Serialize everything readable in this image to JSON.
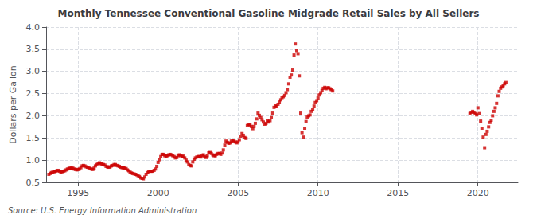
{
  "chart_data": {
    "type": "scatter",
    "title": "Monthly Tennessee Conventional Gasoline Midgrade Retail Sales by All Sellers",
    "ylabel": "Dollars per Gallon",
    "annotation": "Source: U.S. Energy Information Administration",
    "color": "#cc0000",
    "marker": "square",
    "grid": true,
    "xlim": [
      1993.0,
      2022.5
    ],
    "ylim": [
      0.5,
      4.0
    ],
    "xticks": [
      1995,
      2000,
      2005,
      2010,
      2015,
      2020
    ],
    "yticks": [
      0.5,
      {
        "value": 1.0,
        "label": "1.0"
      },
      1.5,
      {
        "value": 2.0,
        "label": "2.0"
      },
      2.5,
      {
        "value": 3.0,
        "label": "3.0"
      },
      3.5,
      {
        "value": 4.0,
        "label": "4.0"
      }
    ],
    "x": [
      1993.17,
      1993.25,
      1993.33,
      1993.42,
      1993.5,
      1993.58,
      1993.67,
      1993.75,
      1993.83,
      1993.92,
      1994.0,
      1994.08,
      1994.17,
      1994.25,
      1994.33,
      1994.42,
      1994.5,
      1994.58,
      1994.67,
      1994.75,
      1994.83,
      1994.92,
      1995.0,
      1995.08,
      1995.17,
      1995.25,
      1995.33,
      1995.42,
      1995.5,
      1995.58,
      1995.67,
      1995.75,
      1995.83,
      1995.92,
      1996.0,
      1996.08,
      1996.17,
      1996.25,
      1996.33,
      1996.42,
      1996.5,
      1996.58,
      1996.67,
      1996.75,
      1996.83,
      1996.92,
      1997.0,
      1997.08,
      1997.17,
      1997.25,
      1997.33,
      1997.42,
      1997.5,
      1997.58,
      1997.67,
      1997.75,
      1997.83,
      1997.92,
      1998.0,
      1998.08,
      1998.17,
      1998.25,
      1998.33,
      1998.42,
      1998.5,
      1998.58,
      1998.67,
      1998.75,
      1998.83,
      1998.92,
      1999.0,
      1999.08,
      1999.17,
      1999.25,
      1999.33,
      1999.42,
      1999.5,
      1999.58,
      1999.67,
      1999.75,
      1999.83,
      1999.92,
      2000.0,
      2000.08,
      2000.17,
      2000.25,
      2000.33,
      2000.42,
      2000.5,
      2000.58,
      2000.67,
      2000.75,
      2000.83,
      2000.92,
      2001.0,
      2001.08,
      2001.17,
      2001.25,
      2001.33,
      2001.42,
      2001.5,
      2001.58,
      2001.67,
      2001.75,
      2001.83,
      2001.92,
      2002.0,
      2002.08,
      2002.17,
      2002.25,
      2002.33,
      2002.42,
      2002.5,
      2002.58,
      2002.67,
      2002.75,
      2002.83,
      2002.92,
      2003.0,
      2003.08,
      2003.17,
      2003.25,
      2003.33,
      2003.42,
      2003.5,
      2003.58,
      2003.67,
      2003.75,
      2003.83,
      2003.92,
      2004.0,
      2004.08,
      2004.17,
      2004.25,
      2004.33,
      2004.42,
      2004.5,
      2004.58,
      2004.67,
      2004.75,
      2004.83,
      2004.92,
      2005.0,
      2005.08,
      2005.17,
      2005.25,
      2005.33,
      2005.42,
      2005.5,
      2005.58,
      2005.67,
      2005.75,
      2005.83,
      2005.92,
      2006.0,
      2006.08,
      2006.17,
      2006.25,
      2006.33,
      2006.42,
      2006.5,
      2006.58,
      2006.67,
      2006.75,
      2006.83,
      2006.92,
      2007.0,
      2007.08,
      2007.17,
      2007.25,
      2007.33,
      2007.42,
      2007.5,
      2007.58,
      2007.67,
      2007.75,
      2007.83,
      2007.92,
      2008.0,
      2008.08,
      2008.17,
      2008.25,
      2008.33,
      2008.42,
      2008.5,
      2008.58,
      2008.67,
      2008.75,
      2008.83,
      2008.92,
      2009.0,
      2009.08,
      2009.17,
      2009.25,
      2009.33,
      2009.42,
      2009.5,
      2009.58,
      2009.67,
      2009.75,
      2009.83,
      2009.92,
      2010.0,
      2010.08,
      2010.17,
      2010.25,
      2010.33,
      2010.42,
      2010.5,
      2010.58,
      2010.67,
      2010.75,
      2010.83,
      2010.92,
      2019.5,
      2019.58,
      2019.67,
      2019.75,
      2019.83,
      2019.92,
      2020.0,
      2020.08,
      2020.17,
      2020.25,
      2020.33,
      2020.42,
      2020.5,
      2020.58,
      2020.67,
      2020.75,
      2020.83,
      2020.92,
      2021.0,
      2021.08,
      2021.17,
      2021.25,
      2021.33,
      2021.42,
      2021.5,
      2021.58,
      2021.67,
      2021.75
    ],
    "values": [
      0.68,
      0.7,
      0.72,
      0.73,
      0.74,
      0.75,
      0.76,
      0.77,
      0.75,
      0.73,
      0.74,
      0.75,
      0.76,
      0.78,
      0.8,
      0.81,
      0.82,
      0.82,
      0.82,
      0.8,
      0.79,
      0.78,
      0.79,
      0.8,
      0.83,
      0.87,
      0.88,
      0.87,
      0.85,
      0.84,
      0.83,
      0.81,
      0.8,
      0.79,
      0.82,
      0.87,
      0.9,
      0.93,
      0.94,
      0.92,
      0.91,
      0.9,
      0.89,
      0.86,
      0.85,
      0.84,
      0.85,
      0.87,
      0.88,
      0.9,
      0.9,
      0.88,
      0.87,
      0.86,
      0.84,
      0.83,
      0.83,
      0.82,
      0.81,
      0.78,
      0.76,
      0.73,
      0.71,
      0.7,
      0.69,
      0.68,
      0.67,
      0.65,
      0.63,
      0.6,
      0.59,
      0.58,
      0.62,
      0.68,
      0.72,
      0.74,
      0.75,
      0.75,
      0.75,
      0.77,
      0.8,
      0.86,
      0.95,
      1.01,
      1.08,
      1.13,
      1.13,
      1.1,
      1.09,
      1.1,
      1.12,
      1.13,
      1.12,
      1.1,
      1.08,
      1.05,
      1.06,
      1.1,
      1.12,
      1.1,
      1.08,
      1.09,
      1.05,
      1.0,
      0.96,
      0.9,
      0.88,
      0.87,
      0.96,
      1.02,
      1.05,
      1.07,
      1.08,
      1.08,
      1.07,
      1.1,
      1.12,
      1.08,
      1.06,
      1.1,
      1.17,
      1.19,
      1.15,
      1.12,
      1.1,
      1.1,
      1.13,
      1.15,
      1.15,
      1.13,
      1.16,
      1.23,
      1.34,
      1.43,
      1.4,
      1.38,
      1.39,
      1.43,
      1.45,
      1.43,
      1.41,
      1.39,
      1.41,
      1.46,
      1.54,
      1.6,
      1.56,
      1.51,
      1.49,
      1.78,
      1.81,
      1.79,
      1.76,
      1.71,
      1.76,
      1.83,
      1.93,
      2.06,
      2.01,
      1.96,
      1.91,
      1.86,
      1.81,
      1.83,
      1.89,
      1.86,
      1.89,
      1.96,
      2.06,
      2.19,
      2.23,
      2.21,
      2.26,
      2.31,
      2.36,
      2.41,
      2.43,
      2.46,
      2.52,
      2.59,
      2.72,
      2.87,
      2.92,
      3.03,
      3.37,
      3.62,
      3.47,
      3.4,
      2.9,
      2.06,
      1.62,
      1.52,
      1.72,
      1.87,
      1.97,
      2.0,
      2.02,
      2.1,
      2.14,
      2.22,
      2.3,
      2.34,
      2.4,
      2.47,
      2.52,
      2.57,
      2.62,
      2.64,
      2.61,
      2.63,
      2.63,
      2.61,
      2.59,
      2.56,
      2.05,
      2.08,
      2.1,
      2.08,
      2.05,
      2.02,
      2.18,
      2.05,
      1.88,
      1.72,
      1.52,
      1.28,
      1.58,
      1.65,
      1.75,
      1.85,
      1.9,
      2.0,
      2.1,
      2.18,
      2.28,
      2.45,
      2.55,
      2.62,
      2.65,
      2.68,
      2.72,
      2.75
    ]
  }
}
